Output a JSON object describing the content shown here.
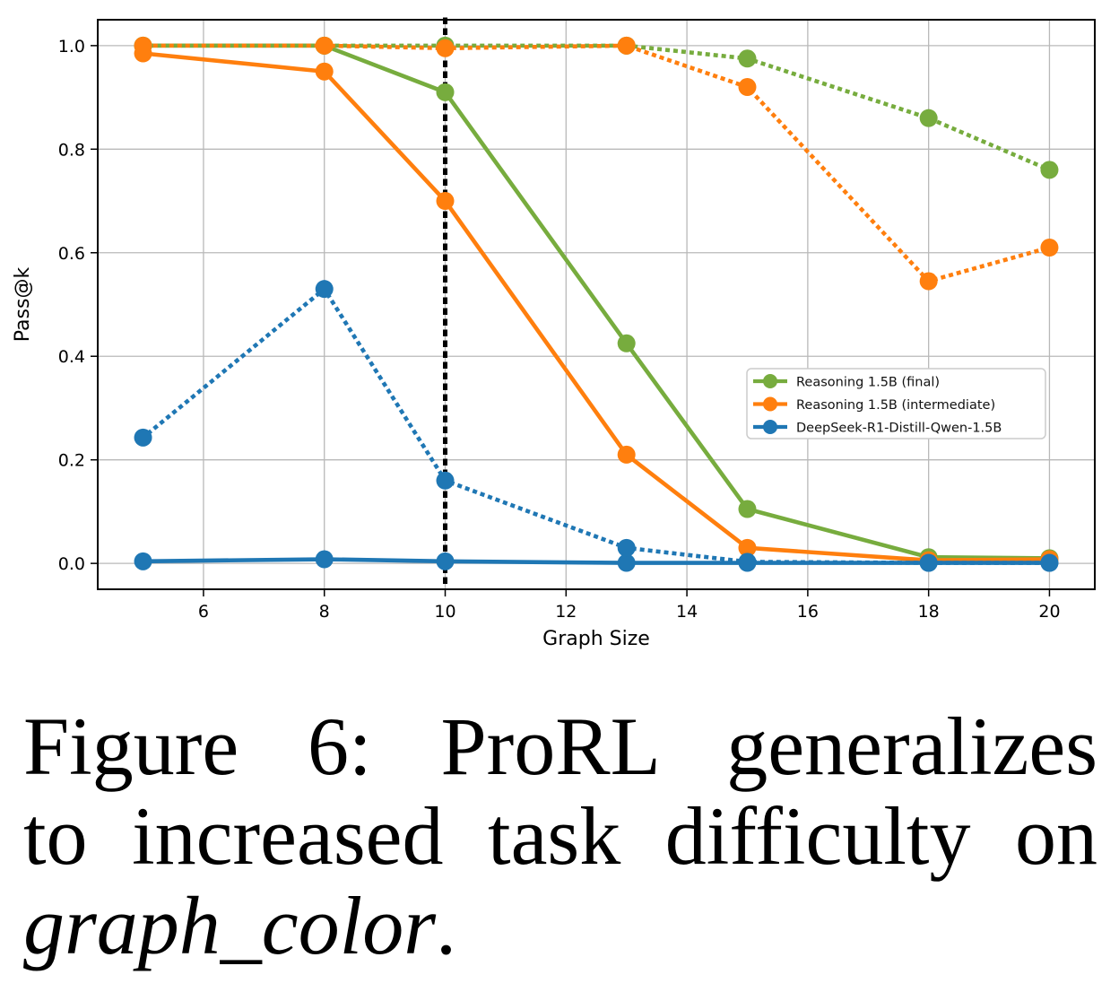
{
  "caption": {
    "line1": "Figure 6: ProRL generalizes",
    "line2": "to increased task difficulty on",
    "task_name": "graph_color",
    "period": "."
  },
  "chart_data": {
    "type": "line",
    "title": "",
    "xlabel": "Graph Size",
    "ylabel": "Pass@k",
    "x": [
      5,
      8,
      10,
      13,
      15,
      18,
      20
    ],
    "xlim": [
      4.25,
      20.75
    ],
    "ylim": [
      -0.05,
      1.05
    ],
    "xticks": [
      6,
      8,
      10,
      12,
      14,
      16,
      18,
      20
    ],
    "yticks": [
      0.0,
      0.2,
      0.4,
      0.6,
      0.8,
      1.0
    ],
    "grid": true,
    "grid_color": "#b9b9b9",
    "vline": {
      "x": 10,
      "color": "#000000",
      "style": "dotted"
    },
    "legend_position": "center right",
    "series": [
      {
        "name": "Reasoning 1.5B (final)",
        "style": "solid",
        "color": "#77AC3E",
        "legend": true,
        "values": [
          1.0,
          1.0,
          0.91,
          0.425,
          0.105,
          0.012,
          0.01
        ]
      },
      {
        "name": "Reasoning 1.5B (final)",
        "style": "dotted",
        "color": "#77AC3E",
        "legend": false,
        "values": [
          1.0,
          1.0,
          1.0,
          1.0,
          0.975,
          0.86,
          0.76
        ]
      },
      {
        "name": "Reasoning 1.5B (intermediate)",
        "style": "solid",
        "color": "#FF7F0E",
        "legend": true,
        "values": [
          0.985,
          0.95,
          0.7,
          0.21,
          0.03,
          0.006,
          0.008
        ]
      },
      {
        "name": "Reasoning 1.5B (intermediate)",
        "style": "dotted",
        "color": "#FF7F0E",
        "legend": false,
        "values": [
          1.0,
          1.0,
          0.995,
          1.0,
          0.92,
          0.545,
          0.61
        ]
      },
      {
        "name": "DeepSeek-R1-Distill-Qwen-1.5B",
        "style": "solid",
        "color": "#1F77B4",
        "legend": true,
        "values": [
          0.004,
          0.008,
          0.004,
          0.001,
          0.001,
          0.001,
          0.001
        ]
      },
      {
        "name": "DeepSeek-R1-Distill-Qwen-1.5B",
        "style": "dotted",
        "color": "#1F77B4",
        "legend": false,
        "values": [
          0.243,
          0.53,
          0.16,
          0.03,
          0.003,
          0.001,
          0.001
        ]
      }
    ]
  }
}
